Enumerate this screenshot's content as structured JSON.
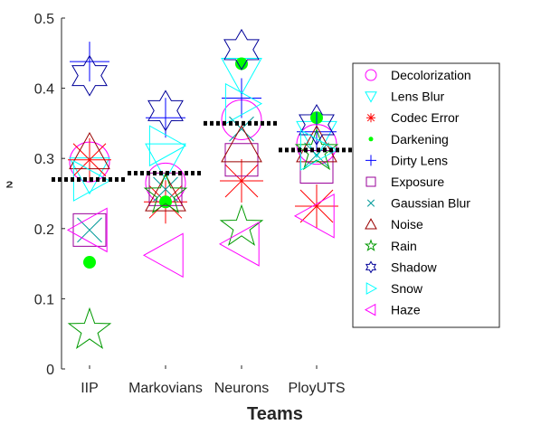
{
  "chart_data": {
    "type": "scatter",
    "title": "",
    "xlabel": "Teams",
    "ylabel": "τ₂",
    "ylabel_visible": "₂",
    "categories": [
      "IIP",
      "Markovians",
      "Neurons",
      "PloyUTS"
    ],
    "ylim": [
      0,
      0.5
    ],
    "yticks": [
      "0",
      "0.1",
      "0.2",
      "0.3",
      "0.4",
      "0.5"
    ],
    "grid": false,
    "legend_position": "right",
    "series": [
      {
        "name": "Decolorization",
        "marker": "circle",
        "color": "#ff00ff",
        "values": [
          0.295,
          0.265,
          0.355,
          0.32
        ]
      },
      {
        "name": "Lens Blur",
        "marker": "triangle-down",
        "color": "#00ffff",
        "values": [
          0.278,
          0.298,
          0.42,
          0.33
        ]
      },
      {
        "name": "Codec Error",
        "marker": "asterisk",
        "color": "#ff0000",
        "values": [
          0.298,
          0.238,
          0.268,
          0.232
        ]
      },
      {
        "name": "Darkening",
        "marker": "dot",
        "color": "#00ff00",
        "values": [
          0.152,
          0.238,
          0.435,
          0.358
        ]
      },
      {
        "name": "Dirty Lens",
        "marker": "plus",
        "color": "#0000ff",
        "values": [
          0.438,
          0.358,
          0.386,
          0.338
        ]
      },
      {
        "name": "Exposure",
        "marker": "square",
        "color": "#990099",
        "values": [
          0.198,
          0.256,
          0.298,
          0.288
        ]
      },
      {
        "name": "Gaussian Blur",
        "marker": "x",
        "color": "#009999",
        "values": [
          0.198,
          0.256,
          0.342,
          0.305
        ]
      },
      {
        "name": "Noise",
        "marker": "triangle-up",
        "color": "#990000",
        "values": [
          0.308,
          0.248,
          0.318,
          0.318
        ]
      },
      {
        "name": "Rain",
        "marker": "pentagram",
        "color": "#009900",
        "values": [
          0.055,
          0.248,
          0.202,
          0.31
        ]
      },
      {
        "name": "Shadow",
        "marker": "hexagram",
        "color": "#000099",
        "values": [
          0.418,
          0.368,
          0.455,
          0.348
        ]
      },
      {
        "name": "Snow",
        "marker": "triangle-right",
        "color": "#00ffff",
        "values": [
          0.268,
          0.318,
          0.378,
          0.312
        ]
      },
      {
        "name": "Haze",
        "marker": "triangle-left",
        "color": "#ff00ff",
        "values": [
          0.198,
          0.162,
          0.178,
          0.218
        ]
      }
    ],
    "mean_lines": {
      "color": "#000000",
      "style": "dotted",
      "values": [
        0.27,
        0.279,
        0.35,
        0.312
      ]
    }
  }
}
